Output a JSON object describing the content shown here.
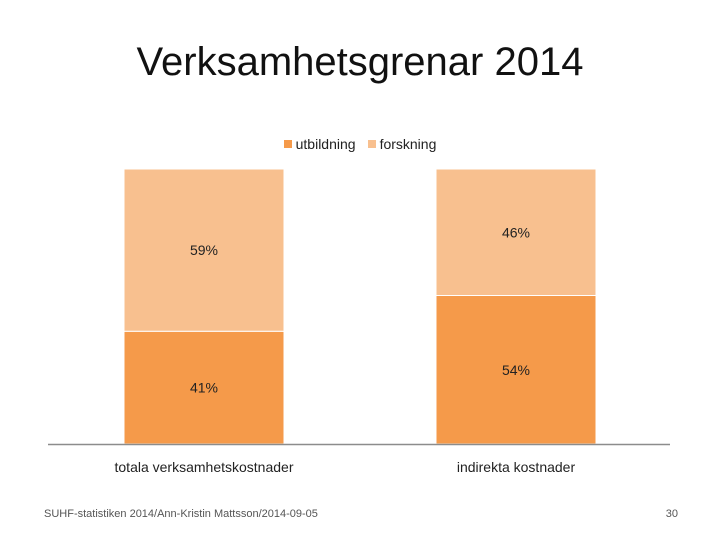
{
  "slide": {
    "title": "Verksamhetsgrenar 2014",
    "footer": "SUHF-statistiken 2014/Ann-Kristin Mattsson/2014-09-05",
    "page_number": "30"
  },
  "colors": {
    "utbildning": "#f59a4a",
    "forskning": "#f8c08f",
    "axis": "#8c8c8c"
  },
  "chart_data": {
    "type": "bar",
    "stacked": true,
    "normalized_percent": true,
    "title": "Verksamhetsgrenar 2014",
    "categories": [
      "totala verksamhetskostnader",
      "indirekta kostnader"
    ],
    "series": [
      {
        "name": "utbildning",
        "values": [
          41,
          54
        ],
        "labels": [
          "41%",
          "54%"
        ]
      },
      {
        "name": "forskning",
        "values": [
          59,
          46
        ],
        "labels": [
          "59%",
          "46%"
        ]
      }
    ],
    "ylim": [
      0,
      100
    ],
    "legend": "top-center",
    "grid": false
  }
}
